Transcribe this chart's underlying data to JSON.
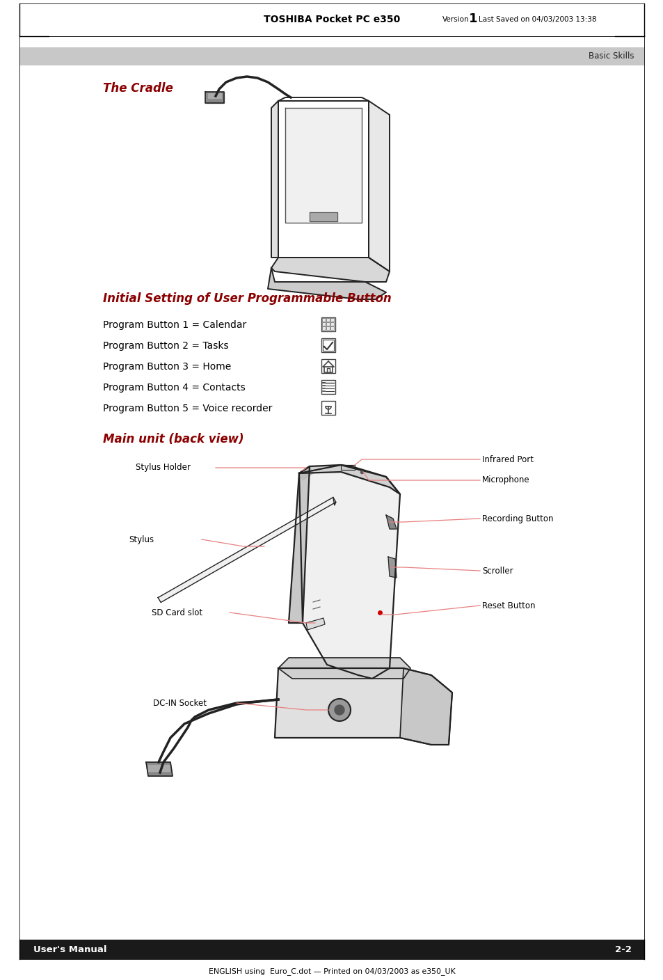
{
  "page_bg": "#ffffff",
  "header_bold": "TOSHIBA Pocket PC e350",
  "header_version_label": "Version",
  "header_version_num": "1",
  "header_date": "Last Saved on 04/03/2003 13:38",
  "tab_text": "Basic Skills",
  "tab_bg": "#c8c8c8",
  "section1_title": "The Cradle",
  "section2_title": "Initial Setting of User Programmable Button",
  "section3_title": "Main unit (back view)",
  "program_buttons": [
    "Program Button 1 = Calendar",
    "Program Button 2 = Tasks",
    "Program Button 3 = Home",
    "Program Button 4 = Contacts",
    "Program Button 5 = Voice recorder"
  ],
  "labels_left": [
    "Stylus Holder",
    "Stylus",
    "SD Card slot",
    "DC-IN Socket"
  ],
  "labels_right": [
    "Infrared Port",
    "Microphone",
    "Recording Button",
    "Scroller",
    "Reset Button"
  ],
  "footer_left": "User's Manual",
  "footer_right": "2-2",
  "footer_bg": "#1a1a1a",
  "footer_text_color": "#ffffff",
  "bottom_text": "ENGLISH using  Euro_C.dot — Printed on 04/03/2003 as e350_UK",
  "title_color": "#8b0000",
  "ann_color": "#e08080",
  "draw_color": "#222222",
  "draw_color2": "#555555"
}
